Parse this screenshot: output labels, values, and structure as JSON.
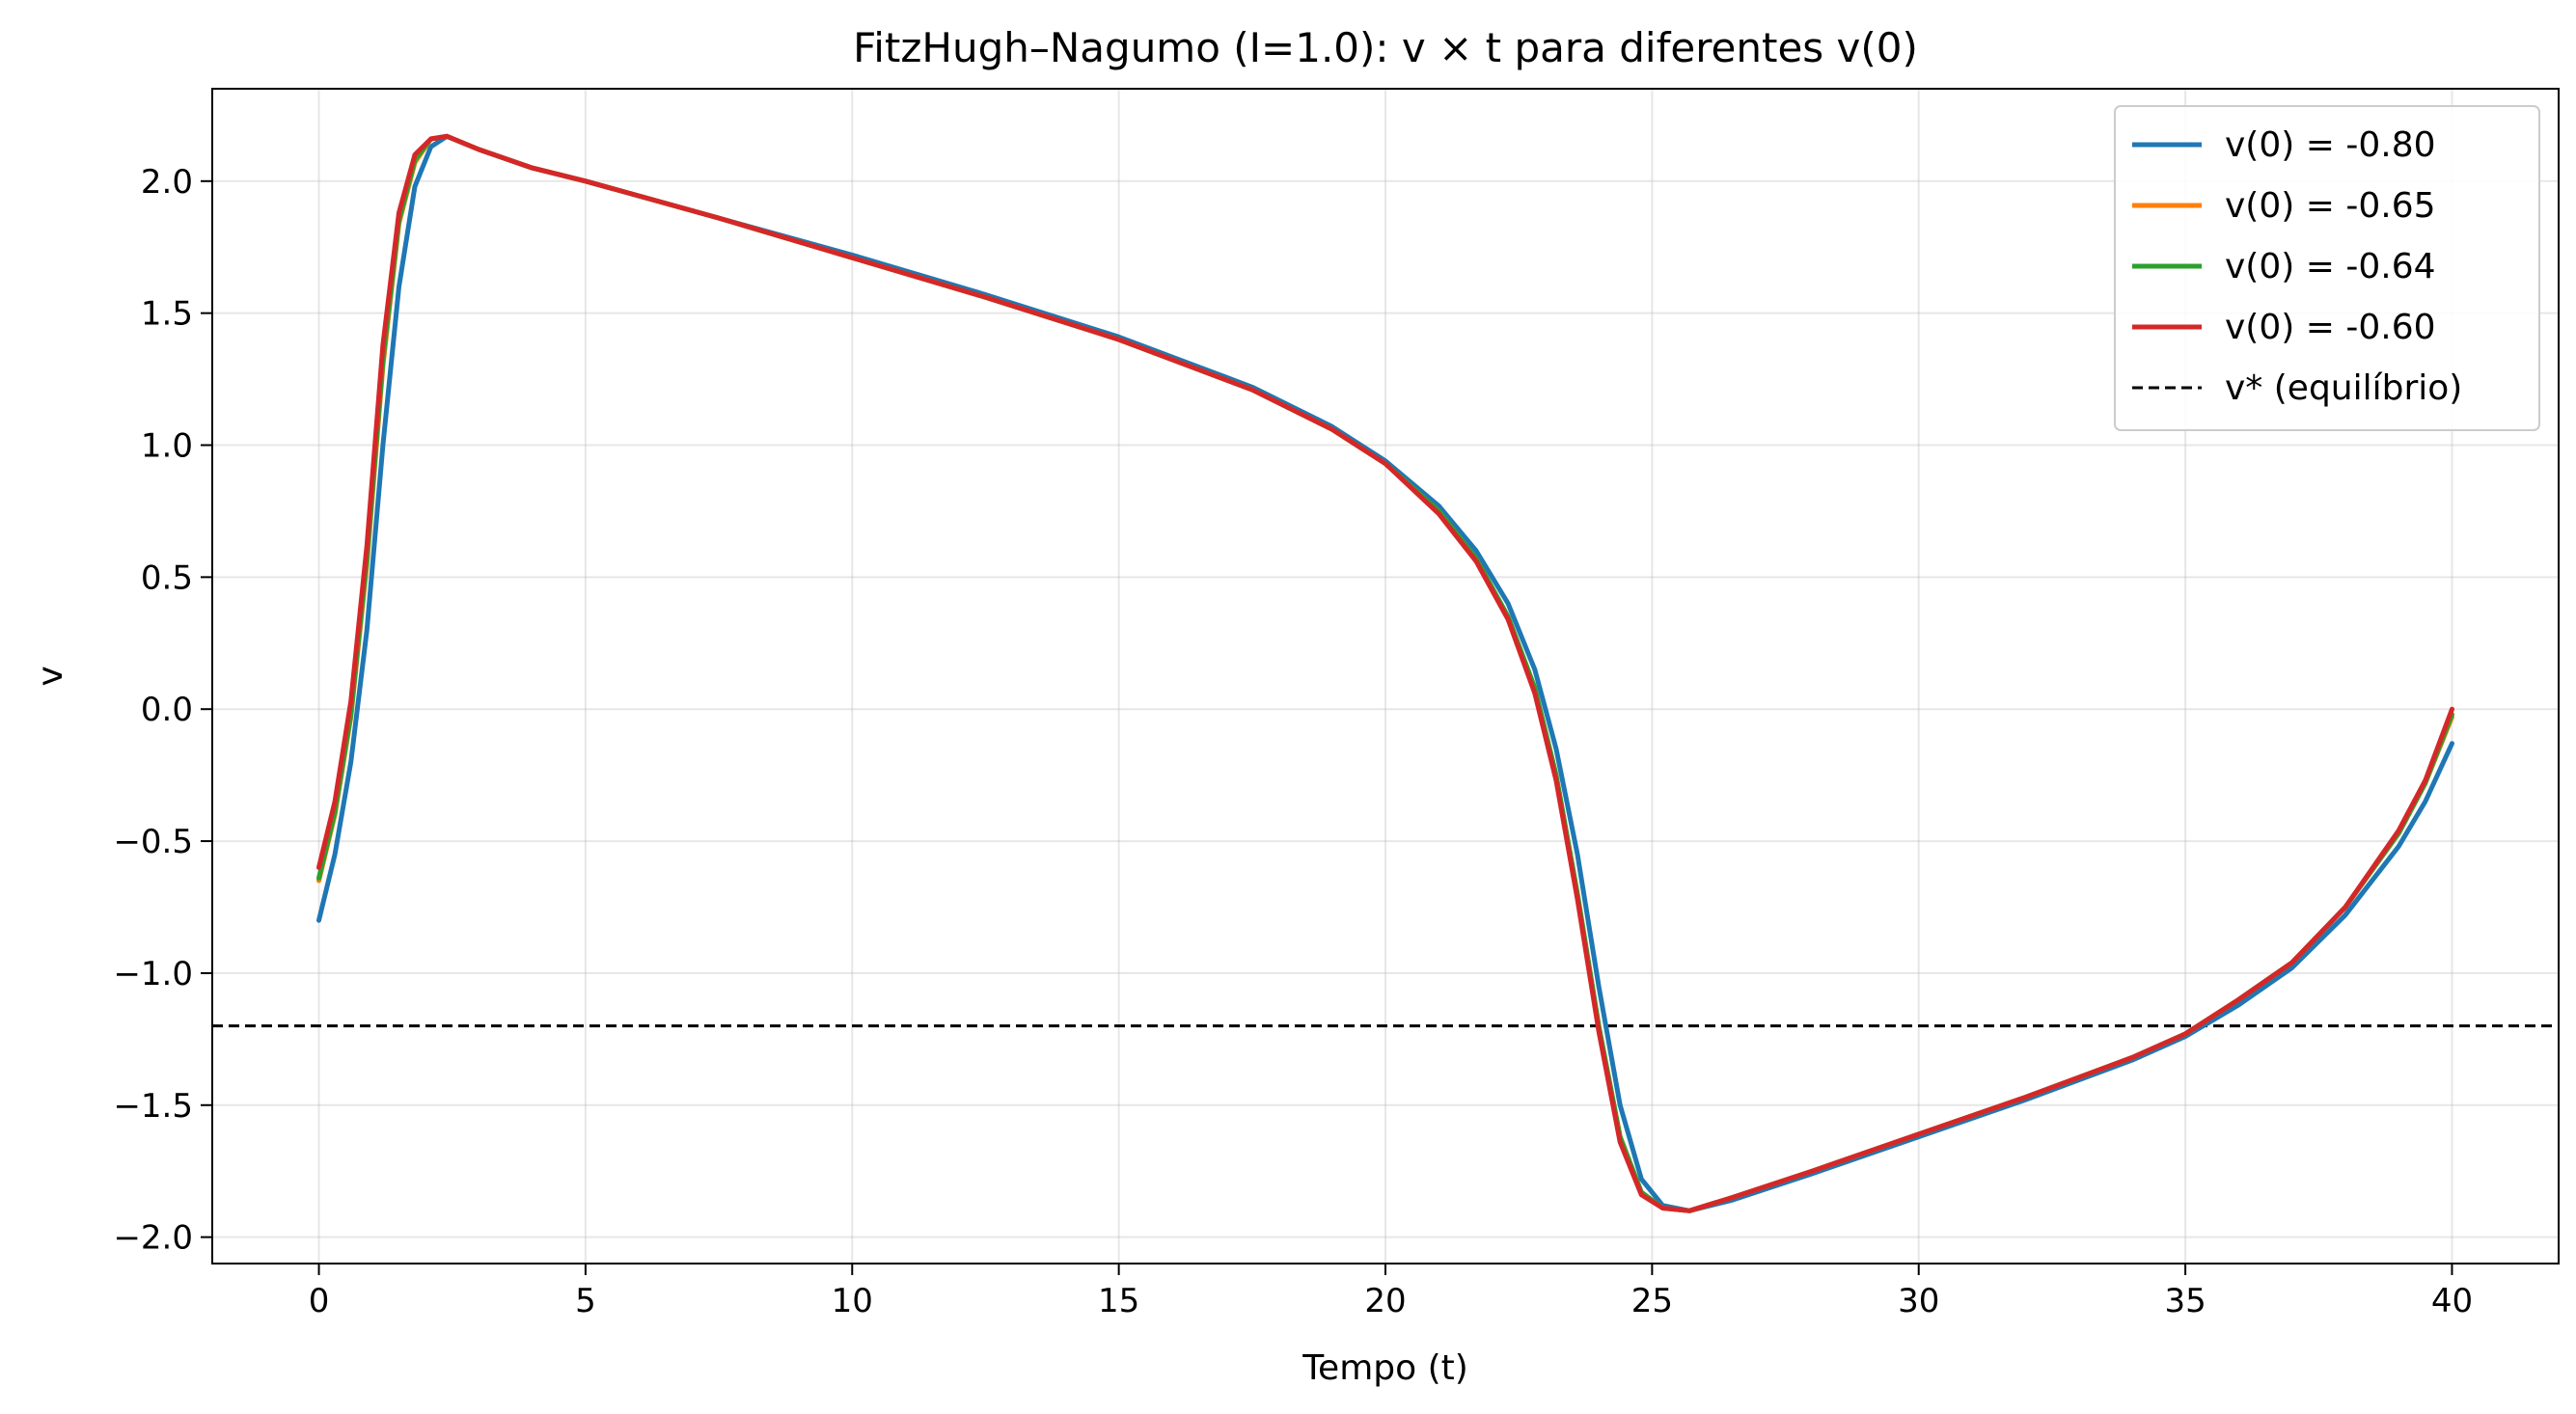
{
  "chart_data": {
    "type": "line",
    "title": "FitzHugh–Nagumo (I=1.0): v × t para diferentes v(0)",
    "xlabel": "Tempo (t)",
    "ylabel": "v",
    "xlim": [
      -2,
      42
    ],
    "ylim": [
      -2.1,
      2.35
    ],
    "xticks": [
      0,
      5,
      10,
      15,
      20,
      25,
      30,
      35,
      40
    ],
    "xtick_labels": [
      "0",
      "5",
      "10",
      "15",
      "20",
      "25",
      "30",
      "35",
      "40"
    ],
    "yticks": [
      2.0,
      1.5,
      1.0,
      0.5,
      0.0,
      -0.5,
      -1.0,
      -1.5,
      -2.0
    ],
    "ytick_labels": [
      "2.0",
      "1.5",
      "1.0",
      "0.5",
      "0.0",
      "−0.5",
      "−1.0",
      "−1.5",
      "−2.0"
    ],
    "grid": true,
    "legend_position": "top-right",
    "reference_line": {
      "name": "v* (equilíbrio)",
      "y": -1.2,
      "style": "dashed",
      "color": "#000000"
    },
    "series": [
      {
        "name": "v(0) = -0.80",
        "color": "#1f77b4",
        "points": [
          [
            0,
            -0.8
          ],
          [
            0.3,
            -0.55
          ],
          [
            0.6,
            -0.2
          ],
          [
            0.9,
            0.3
          ],
          [
            1.2,
            1.0
          ],
          [
            1.5,
            1.6
          ],
          [
            1.8,
            1.98
          ],
          [
            2.1,
            2.13
          ],
          [
            2.4,
            2.17
          ],
          [
            3,
            2.12
          ],
          [
            4,
            2.05
          ],
          [
            5,
            2.0
          ],
          [
            7.5,
            1.86
          ],
          [
            10,
            1.72
          ],
          [
            12.5,
            1.57
          ],
          [
            15,
            1.41
          ],
          [
            17.5,
            1.22
          ],
          [
            19,
            1.07
          ],
          [
            20,
            0.94
          ],
          [
            21,
            0.77
          ],
          [
            21.7,
            0.6
          ],
          [
            22.3,
            0.4
          ],
          [
            22.8,
            0.15
          ],
          [
            23.2,
            -0.15
          ],
          [
            23.6,
            -0.55
          ],
          [
            24,
            -1.05
          ],
          [
            24.4,
            -1.5
          ],
          [
            24.8,
            -1.78
          ],
          [
            25.2,
            -1.88
          ],
          [
            25.7,
            -1.9
          ],
          [
            26.5,
            -1.86
          ],
          [
            28,
            -1.76
          ],
          [
            30,
            -1.62
          ],
          [
            32,
            -1.48
          ],
          [
            34,
            -1.33
          ],
          [
            35,
            -1.24
          ],
          [
            36,
            -1.12
          ],
          [
            37,
            -0.98
          ],
          [
            38,
            -0.78
          ],
          [
            39,
            -0.52
          ],
          [
            39.5,
            -0.35
          ],
          [
            40,
            -0.13
          ]
        ]
      },
      {
        "name": "v(0) = -0.65",
        "color": "#ff7f0e",
        "points": [
          [
            0,
            -0.65
          ],
          [
            0.3,
            -0.4
          ],
          [
            0.6,
            -0.03
          ],
          [
            0.9,
            0.55
          ],
          [
            1.2,
            1.3
          ],
          [
            1.5,
            1.84
          ],
          [
            1.8,
            2.07
          ],
          [
            2.1,
            2.16
          ],
          [
            2.4,
            2.17
          ],
          [
            3,
            2.12
          ],
          [
            4,
            2.05
          ],
          [
            5,
            2.0
          ],
          [
            7.5,
            1.86
          ],
          [
            10,
            1.71
          ],
          [
            12.5,
            1.56
          ],
          [
            15,
            1.4
          ],
          [
            17.5,
            1.21
          ],
          [
            19,
            1.06
          ],
          [
            20,
            0.93
          ],
          [
            21,
            0.75
          ],
          [
            21.7,
            0.57
          ],
          [
            22.3,
            0.35
          ],
          [
            22.8,
            0.08
          ],
          [
            23.2,
            -0.25
          ],
          [
            23.6,
            -0.7
          ],
          [
            24,
            -1.2
          ],
          [
            24.4,
            -1.62
          ],
          [
            24.8,
            -1.83
          ],
          [
            25.2,
            -1.89
          ],
          [
            25.7,
            -1.9
          ],
          [
            26.5,
            -1.85
          ],
          [
            28,
            -1.75
          ],
          [
            30,
            -1.61
          ],
          [
            32,
            -1.47
          ],
          [
            34,
            -1.32
          ],
          [
            35,
            -1.23
          ],
          [
            36,
            -1.1
          ],
          [
            37,
            -0.96
          ],
          [
            38,
            -0.75
          ],
          [
            39,
            -0.47
          ],
          [
            39.5,
            -0.28
          ],
          [
            40,
            -0.03
          ]
        ]
      },
      {
        "name": "v(0) = -0.64",
        "color": "#2ca02c",
        "points": [
          [
            0,
            -0.64
          ],
          [
            0.3,
            -0.39
          ],
          [
            0.6,
            -0.02
          ],
          [
            0.9,
            0.57
          ],
          [
            1.2,
            1.32
          ],
          [
            1.5,
            1.85
          ],
          [
            1.8,
            2.08
          ],
          [
            2.1,
            2.16
          ],
          [
            2.4,
            2.17
          ],
          [
            3,
            2.12
          ],
          [
            4,
            2.05
          ],
          [
            5,
            2.0
          ],
          [
            7.5,
            1.86
          ],
          [
            10,
            1.71
          ],
          [
            12.5,
            1.56
          ],
          [
            15,
            1.4
          ],
          [
            17.5,
            1.21
          ],
          [
            19,
            1.06
          ],
          [
            20,
            0.93
          ],
          [
            21,
            0.75
          ],
          [
            21.7,
            0.57
          ],
          [
            22.3,
            0.35
          ],
          [
            22.8,
            0.08
          ],
          [
            23.2,
            -0.25
          ],
          [
            23.6,
            -0.7
          ],
          [
            24,
            -1.2
          ],
          [
            24.4,
            -1.62
          ],
          [
            24.8,
            -1.83
          ],
          [
            25.2,
            -1.89
          ],
          [
            25.7,
            -1.9
          ],
          [
            26.5,
            -1.85
          ],
          [
            28,
            -1.75
          ],
          [
            30,
            -1.61
          ],
          [
            32,
            -1.47
          ],
          [
            34,
            -1.32
          ],
          [
            35,
            -1.23
          ],
          [
            36,
            -1.1
          ],
          [
            37,
            -0.96
          ],
          [
            38,
            -0.75
          ],
          [
            39,
            -0.47
          ],
          [
            39.5,
            -0.28
          ],
          [
            40,
            -0.02
          ]
        ]
      },
      {
        "name": "v(0) = -0.60",
        "color": "#d62728",
        "points": [
          [
            0,
            -0.6
          ],
          [
            0.3,
            -0.35
          ],
          [
            0.6,
            0.03
          ],
          [
            0.9,
            0.62
          ],
          [
            1.2,
            1.38
          ],
          [
            1.5,
            1.88
          ],
          [
            1.8,
            2.1
          ],
          [
            2.1,
            2.16
          ],
          [
            2.4,
            2.17
          ],
          [
            3,
            2.12
          ],
          [
            4,
            2.05
          ],
          [
            5,
            2.0
          ],
          [
            7.5,
            1.86
          ],
          [
            10,
            1.71
          ],
          [
            12.5,
            1.56
          ],
          [
            15,
            1.4
          ],
          [
            17.5,
            1.21
          ],
          [
            19,
            1.06
          ],
          [
            20,
            0.93
          ],
          [
            21,
            0.74
          ],
          [
            21.7,
            0.56
          ],
          [
            22.3,
            0.34
          ],
          [
            22.8,
            0.06
          ],
          [
            23.2,
            -0.27
          ],
          [
            23.6,
            -0.72
          ],
          [
            24,
            -1.22
          ],
          [
            24.4,
            -1.64
          ],
          [
            24.8,
            -1.84
          ],
          [
            25.2,
            -1.89
          ],
          [
            25.7,
            -1.9
          ],
          [
            26.5,
            -1.85
          ],
          [
            28,
            -1.75
          ],
          [
            30,
            -1.61
          ],
          [
            32,
            -1.47
          ],
          [
            34,
            -1.32
          ],
          [
            35,
            -1.23
          ],
          [
            36,
            -1.1
          ],
          [
            37,
            -0.96
          ],
          [
            38,
            -0.75
          ],
          [
            39,
            -0.46
          ],
          [
            39.5,
            -0.27
          ],
          [
            40,
            0.0
          ]
        ]
      }
    ]
  }
}
